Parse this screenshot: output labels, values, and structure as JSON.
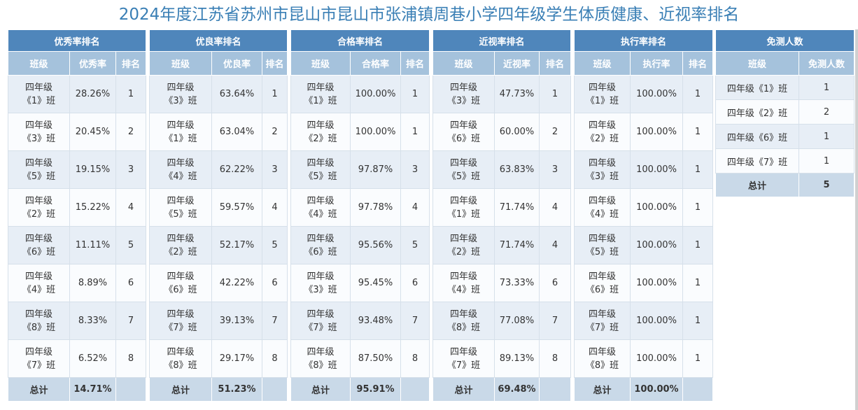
{
  "title": "2024年度江苏省苏州市昆山市昆山市张浦镇周巷小学四年级学生体质健康、近视率排名",
  "panels": [
    {
      "title": "优秀率排名",
      "cols": [
        "班级",
        "优秀率",
        "排名"
      ],
      "rows": [
        {
          "grade": "四年级",
          "cls": "《1》班",
          "rate": "28.26%",
          "rank": "1"
        },
        {
          "grade": "四年级",
          "cls": "《3》班",
          "rate": "20.45%",
          "rank": "2"
        },
        {
          "grade": "四年级",
          "cls": "《5》班",
          "rate": "19.15%",
          "rank": "3"
        },
        {
          "grade": "四年级",
          "cls": "《2》班",
          "rate": "15.22%",
          "rank": "4"
        },
        {
          "grade": "四年级",
          "cls": "《6》班",
          "rate": "11.11%",
          "rank": "5"
        },
        {
          "grade": "四年级",
          "cls": "《4》班",
          "rate": "8.89%",
          "rank": "6"
        },
        {
          "grade": "四年级",
          "cls": "《8》班",
          "rate": "8.33%",
          "rank": "7"
        },
        {
          "grade": "四年级",
          "cls": "《7》班",
          "rate": "6.52%",
          "rank": "8"
        }
      ],
      "total_label": "总计",
      "total_value": "14.71%"
    },
    {
      "title": "优良率排名",
      "cols": [
        "班级",
        "优良率",
        "排名"
      ],
      "rows": [
        {
          "grade": "四年级",
          "cls": "《3》班",
          "rate": "63.64%",
          "rank": "1"
        },
        {
          "grade": "四年级",
          "cls": "《1》班",
          "rate": "63.04%",
          "rank": "2"
        },
        {
          "grade": "四年级",
          "cls": "《4》班",
          "rate": "62.22%",
          "rank": "3"
        },
        {
          "grade": "四年级",
          "cls": "《5》班",
          "rate": "59.57%",
          "rank": "4"
        },
        {
          "grade": "四年级",
          "cls": "《2》班",
          "rate": "52.17%",
          "rank": "5"
        },
        {
          "grade": "四年级",
          "cls": "《6》班",
          "rate": "42.22%",
          "rank": "6"
        },
        {
          "grade": "四年级",
          "cls": "《7》班",
          "rate": "39.13%",
          "rank": "7"
        },
        {
          "grade": "四年级",
          "cls": "《8》班",
          "rate": "29.17%",
          "rank": "8"
        }
      ],
      "total_label": "总计",
      "total_value": "51.23%"
    },
    {
      "title": "合格率排名",
      "cols": [
        "班级",
        "合格率",
        "排名"
      ],
      "rows": [
        {
          "grade": "四年级",
          "cls": "《1》班",
          "rate": "100.00%",
          "rank": "1"
        },
        {
          "grade": "四年级",
          "cls": "《2》班",
          "rate": "100.00%",
          "rank": "1"
        },
        {
          "grade": "四年级",
          "cls": "《5》班",
          "rate": "97.87%",
          "rank": "3"
        },
        {
          "grade": "四年级",
          "cls": "《4》班",
          "rate": "97.78%",
          "rank": "4"
        },
        {
          "grade": "四年级",
          "cls": "《6》班",
          "rate": "95.56%",
          "rank": "5"
        },
        {
          "grade": "四年级",
          "cls": "《3》班",
          "rate": "95.45%",
          "rank": "6"
        },
        {
          "grade": "四年级",
          "cls": "《7》班",
          "rate": "93.48%",
          "rank": "7"
        },
        {
          "grade": "四年级",
          "cls": "《8》班",
          "rate": "87.50%",
          "rank": "8"
        }
      ],
      "total_label": "总计",
      "total_value": "95.91%"
    },
    {
      "title": "近视率排名",
      "cols": [
        "班级",
        "近视率",
        "排名"
      ],
      "rows": [
        {
          "grade": "四年级",
          "cls": "《3》班",
          "rate": "47.73%",
          "rank": "1"
        },
        {
          "grade": "四年级",
          "cls": "《6》班",
          "rate": "60.00%",
          "rank": "2"
        },
        {
          "grade": "四年级",
          "cls": "《5》班",
          "rate": "63.83%",
          "rank": "3"
        },
        {
          "grade": "四年级",
          "cls": "《1》班",
          "rate": "71.74%",
          "rank": "4"
        },
        {
          "grade": "四年级",
          "cls": "《2》班",
          "rate": "71.74%",
          "rank": "4"
        },
        {
          "grade": "四年级",
          "cls": "《4》班",
          "rate": "73.33%",
          "rank": "6"
        },
        {
          "grade": "四年级",
          "cls": "《8》班",
          "rate": "77.08%",
          "rank": "7"
        },
        {
          "grade": "四年级",
          "cls": "《7》班",
          "rate": "89.13%",
          "rank": "8"
        }
      ],
      "total_label": "总计",
      "total_value": "69.48%"
    },
    {
      "title": "执行率排名",
      "cols": [
        "班级",
        "执行率",
        "排名"
      ],
      "rows": [
        {
          "grade": "四年级",
          "cls": "《1》班",
          "rate": "100.00%",
          "rank": "1"
        },
        {
          "grade": "四年级",
          "cls": "《2》班",
          "rate": "100.00%",
          "rank": "1"
        },
        {
          "grade": "四年级",
          "cls": "《3》班",
          "rate": "100.00%",
          "rank": "1"
        },
        {
          "grade": "四年级",
          "cls": "《4》班",
          "rate": "100.00%",
          "rank": "1"
        },
        {
          "grade": "四年级",
          "cls": "《5》班",
          "rate": "100.00%",
          "rank": "1"
        },
        {
          "grade": "四年级",
          "cls": "《6》班",
          "rate": "100.00%",
          "rank": "1"
        },
        {
          "grade": "四年级",
          "cls": "《7》班",
          "rate": "100.00%",
          "rank": "1"
        },
        {
          "grade": "四年级",
          "cls": "《8》班",
          "rate": "100.00%",
          "rank": "1"
        }
      ],
      "total_label": "总计",
      "total_value": "100.00%"
    }
  ],
  "exempt": {
    "title": "免测人数",
    "cols": [
      "班级",
      "免测人数"
    ],
    "rows": [
      {
        "cls": "四年级《1》班",
        "count": "1"
      },
      {
        "cls": "四年级《2》班",
        "count": "2"
      },
      {
        "cls": "四年级《6》班",
        "count": "1"
      },
      {
        "cls": "四年级《7》班",
        "count": "1"
      }
    ],
    "total_label": "总计",
    "total_value": "5"
  }
}
